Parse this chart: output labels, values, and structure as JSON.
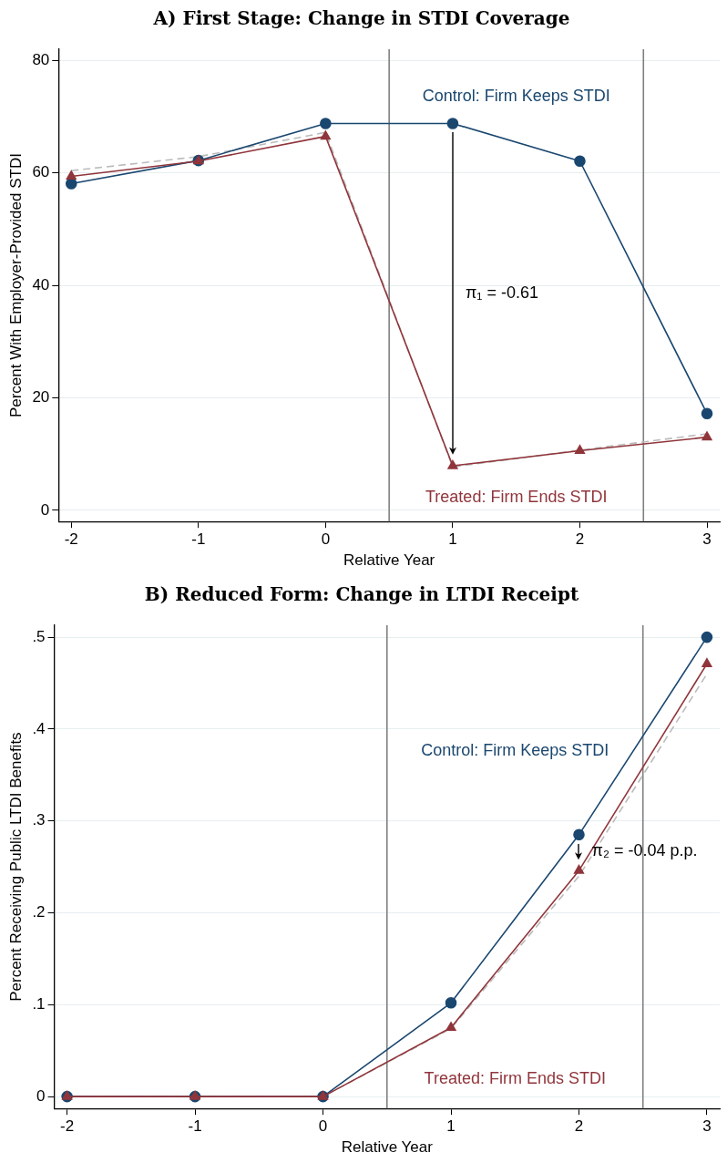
{
  "chart_data": [
    {
      "type": "line",
      "title": "A) First Stage: Change in STDI Coverage",
      "xlabel": "Relative Year",
      "ylabel": "Percent With Employer-Provided STDI",
      "x": [
        -2,
        -1,
        0,
        1,
        2,
        3
      ],
      "xlim": [
        -2.1,
        3.1
      ],
      "xticks": [
        -2,
        -1,
        0,
        1,
        2,
        3
      ],
      "ylim": [
        -2,
        82
      ],
      "yticks": [
        0,
        20,
        40,
        60,
        80
      ],
      "series": [
        {
          "color": "#bbbbbb",
          "marker": "none",
          "line_style": "dashed",
          "values": [
            60.4,
            62.9,
            67.2,
            7.7,
            10.7,
            13.6
          ]
        },
        {
          "name": "Control: Firm Keeps STDI",
          "color": "#1a476f",
          "marker": "circle",
          "line_style": "solid",
          "values": [
            58.1,
            62.2,
            68.8,
            68.8,
            62.1,
            17.2
          ]
        },
        {
          "name": "Treated: Firm Ends STDI",
          "color": "#90353b",
          "marker": "triangle",
          "line_style": "solid",
          "values": [
            59.4,
            62.1,
            66.5,
            7.9,
            10.6,
            13.0
          ]
        }
      ],
      "ref_lines": [
        {
          "axis": "x",
          "value": 0.5,
          "color": "#808080"
        },
        {
          "axis": "x",
          "value": 2.5,
          "color": "#808080"
        }
      ],
      "annotations": [
        "π₁ = -0.61"
      ],
      "grid": "y",
      "legend": false
    },
    {
      "type": "line",
      "title": "B) Reduced Form: Change in LTDI Receipt",
      "xlabel": "Relative Year",
      "ylabel": "Percent Receiving Public LTDI Benefits",
      "x": [
        -2,
        -1,
        0,
        1,
        2,
        3
      ],
      "xlim": [
        -2.1,
        3.1
      ],
      "xticks": [
        -2,
        -1,
        0,
        1,
        2,
        3
      ],
      "ylim": [
        -0.013,
        0.513
      ],
      "yticks": [
        0,
        {
          "value": 0.1,
          "label": ".1"
        },
        {
          "value": 0.2,
          "label": ".2"
        },
        {
          "value": 0.3,
          "label": ".3"
        },
        {
          "value": 0.4,
          "label": ".4"
        },
        {
          "value": 0.5,
          "label": ".5"
        }
      ],
      "series": [
        {
          "color": "#bbbbbb",
          "marker": "none",
          "line_style": "dashed",
          "values": [
            0,
            0,
            0,
            0.074,
            0.24,
            0.46
          ]
        },
        {
          "name": "Control: Firm Keeps STDI",
          "color": "#1a476f",
          "marker": "circle",
          "line_style": "solid",
          "values": [
            0,
            0,
            0,
            0.102,
            0.285,
            0.5
          ]
        },
        {
          "name": "Treated: Firm Ends STDI",
          "color": "#90353b",
          "marker": "triangle",
          "line_style": "solid",
          "values": [
            0,
            0,
            0,
            0.075,
            0.246,
            0.471
          ]
        }
      ],
      "ref_lines": [
        {
          "axis": "x",
          "value": 0.5,
          "color": "#808080"
        },
        {
          "axis": "x",
          "value": 2.5,
          "color": "#808080"
        }
      ],
      "annotations": [
        "π₂ = -0.04 p.p."
      ],
      "grid": "y",
      "legend": false
    }
  ]
}
